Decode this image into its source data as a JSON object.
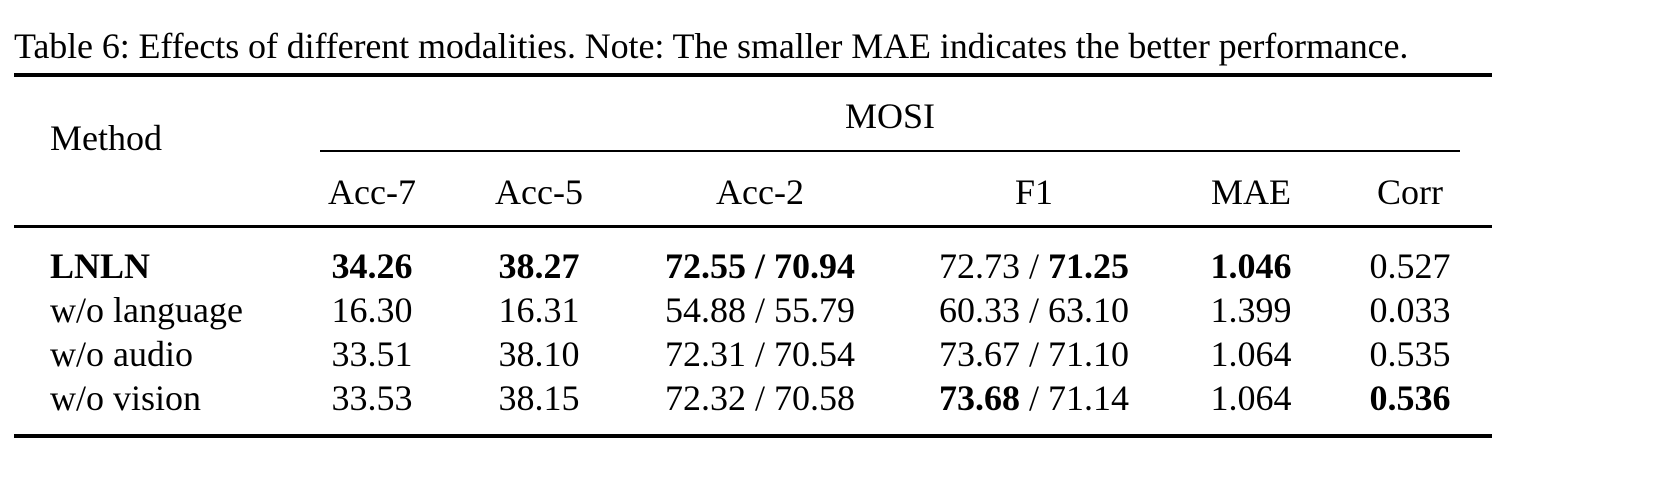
{
  "caption": "Table 6: Effects of different modalities. Note: The smaller MAE indicates the better performance.",
  "table": {
    "method_header": "Method",
    "group_header": "MOSI",
    "columns": [
      "Acc-7",
      "Acc-5",
      "Acc-2",
      "F1",
      "MAE",
      "Corr"
    ],
    "rows": [
      {
        "method": "LNLN",
        "method_bold": true,
        "cells": [
          {
            "parts": [
              {
                "t": "34.26",
                "b": true
              }
            ]
          },
          {
            "parts": [
              {
                "t": "38.27",
                "b": true
              }
            ]
          },
          {
            "parts": [
              {
                "t": "72.55 / 70.94",
                "b": true
              }
            ]
          },
          {
            "parts": [
              {
                "t": "72.73 / ",
                "b": false
              },
              {
                "t": "71.25",
                "b": true
              }
            ]
          },
          {
            "parts": [
              {
                "t": "1.046",
                "b": true
              }
            ]
          },
          {
            "parts": [
              {
                "t": "0.527",
                "b": false
              }
            ]
          }
        ]
      },
      {
        "method": "w/o language",
        "method_bold": false,
        "cells": [
          {
            "parts": [
              {
                "t": "16.30",
                "b": false
              }
            ]
          },
          {
            "parts": [
              {
                "t": "16.31",
                "b": false
              }
            ]
          },
          {
            "parts": [
              {
                "t": "54.88 / 55.79",
                "b": false
              }
            ]
          },
          {
            "parts": [
              {
                "t": "60.33 / 63.10",
                "b": false
              }
            ]
          },
          {
            "parts": [
              {
                "t": "1.399",
                "b": false
              }
            ]
          },
          {
            "parts": [
              {
                "t": "0.033",
                "b": false
              }
            ]
          }
        ]
      },
      {
        "method": "w/o audio",
        "method_bold": false,
        "cells": [
          {
            "parts": [
              {
                "t": "33.51",
                "b": false
              }
            ]
          },
          {
            "parts": [
              {
                "t": "38.10",
                "b": false
              }
            ]
          },
          {
            "parts": [
              {
                "t": "72.31 / 70.54",
                "b": false
              }
            ]
          },
          {
            "parts": [
              {
                "t": "73.67 / 71.10",
                "b": false
              }
            ]
          },
          {
            "parts": [
              {
                "t": "1.064",
                "b": false
              }
            ]
          },
          {
            "parts": [
              {
                "t": "0.535",
                "b": false
              }
            ]
          }
        ]
      },
      {
        "method": "w/o vision",
        "method_bold": false,
        "cells": [
          {
            "parts": [
              {
                "t": "33.53",
                "b": false
              }
            ]
          },
          {
            "parts": [
              {
                "t": "38.15",
                "b": false
              }
            ]
          },
          {
            "parts": [
              {
                "t": "72.32 / 70.58",
                "b": false
              }
            ]
          },
          {
            "parts": [
              {
                "t": "73.68",
                "b": true
              },
              {
                "t": " / 71.14",
                "b": false
              }
            ]
          },
          {
            "parts": [
              {
                "t": "1.064",
                "b": false
              }
            ]
          },
          {
            "parts": [
              {
                "t": "0.536",
                "b": true
              }
            ]
          }
        ]
      }
    ]
  }
}
